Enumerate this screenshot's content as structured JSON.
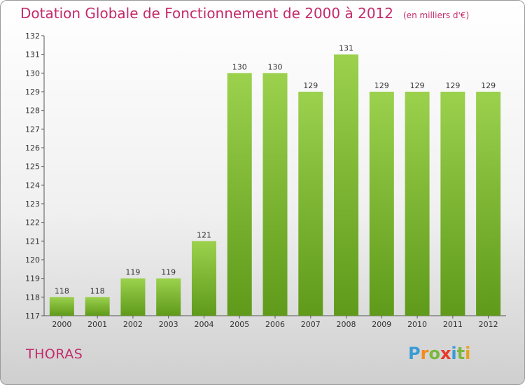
{
  "title": "Dotation Globale de Fonctionnement de 2000 à 2012",
  "unit": "(en milliers d'€)",
  "city": "THORAS",
  "brand": {
    "letters": [
      "P",
      "r",
      "o",
      "x",
      "i",
      "t",
      "i"
    ],
    "colors": [
      "#3a9bd5",
      "#f28c1e",
      "#7ab83e",
      "#e8382b",
      "#3a9bd5",
      "#7ab83e",
      "#e8a01e"
    ]
  },
  "colors": {
    "title": "#c42a6b",
    "bar_light": "#9bd14d",
    "bar_dark": "#5f9a1a"
  },
  "chart_data": {
    "type": "bar",
    "categories": [
      "2000",
      "2001",
      "2002",
      "2003",
      "2004",
      "2005",
      "2006",
      "2007",
      "2008",
      "2009",
      "2010",
      "2011",
      "2012"
    ],
    "values": [
      118,
      118,
      119,
      119,
      121,
      130,
      130,
      129,
      131,
      129,
      129,
      129,
      129
    ],
    "ylim": [
      117,
      132
    ],
    "yticks": [
      117,
      118,
      119,
      120,
      121,
      122,
      123,
      124,
      125,
      126,
      127,
      128,
      129,
      130,
      131,
      132
    ],
    "grid": false,
    "data_labels": true
  }
}
